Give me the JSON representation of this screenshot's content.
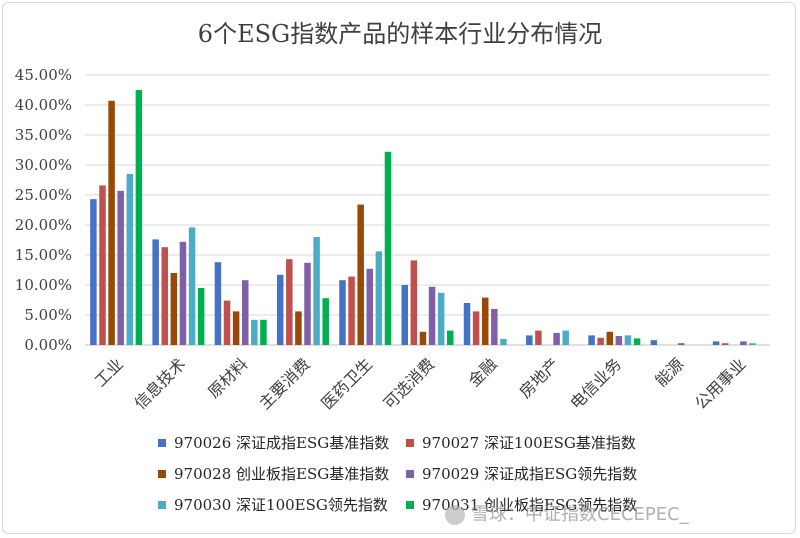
{
  "chart_data": {
    "type": "bar",
    "title": "6个ESG指数产品的样本行业分布情况",
    "categories": [
      "工业",
      "信息技术",
      "原材料",
      "主要消费",
      "医药卫生",
      "可选消费",
      "金融",
      "房地产",
      "电信业务",
      "能源",
      "公用事业"
    ],
    "y_tick_labels": [
      "0.00%",
      "5.00%",
      "10.00%",
      "15.00%",
      "20.00%",
      "25.00%",
      "30.00%",
      "35.00%",
      "40.00%",
      "45.00%"
    ],
    "ylim": [
      0,
      45
    ],
    "grid": true,
    "legend_position": "bottom",
    "series": [
      {
        "name": "970026 深证成指ESG基准指数",
        "color": "#4472c4",
        "values": [
          24.3,
          17.6,
          13.8,
          11.7,
          10.8,
          10.0,
          7.0,
          1.6,
          1.6,
          0.8,
          0.6
        ]
      },
      {
        "name": "970027 深证100ESG基准指数",
        "color": "#c0504d",
        "values": [
          26.6,
          16.3,
          7.4,
          14.3,
          11.4,
          14.1,
          5.6,
          2.4,
          1.2,
          0.0,
          0.3
        ]
      },
      {
        "name": "970028 创业板指ESG基准指数",
        "color": "#984807",
        "values": [
          40.7,
          12.0,
          5.6,
          5.6,
          23.4,
          2.2,
          7.9,
          0.0,
          2.2,
          0.0,
          0.0
        ]
      },
      {
        "name": "970029 深证成指ESG领先指数",
        "color": "#7f5fa8",
        "values": [
          25.7,
          17.2,
          10.8,
          13.7,
          12.7,
          9.7,
          6.0,
          2.0,
          1.5,
          0.3,
          0.6
        ]
      },
      {
        "name": "970030 深证100ESG领先指数",
        "color": "#4bacc6",
        "values": [
          28.5,
          19.6,
          4.2,
          18.0,
          15.6,
          8.7,
          1.0,
          2.4,
          1.6,
          0.0,
          0.3
        ]
      },
      {
        "name": "970031 创业板指ESG领先指数",
        "color": "#00b050",
        "values": [
          42.5,
          9.5,
          4.2,
          7.8,
          32.2,
          2.4,
          0.0,
          0.0,
          1.1,
          0.0,
          0.0
        ]
      }
    ]
  },
  "watermark": {
    "text": "雪球：中证指数CECEPEC_",
    "icon": "snowball-logo-icon"
  }
}
